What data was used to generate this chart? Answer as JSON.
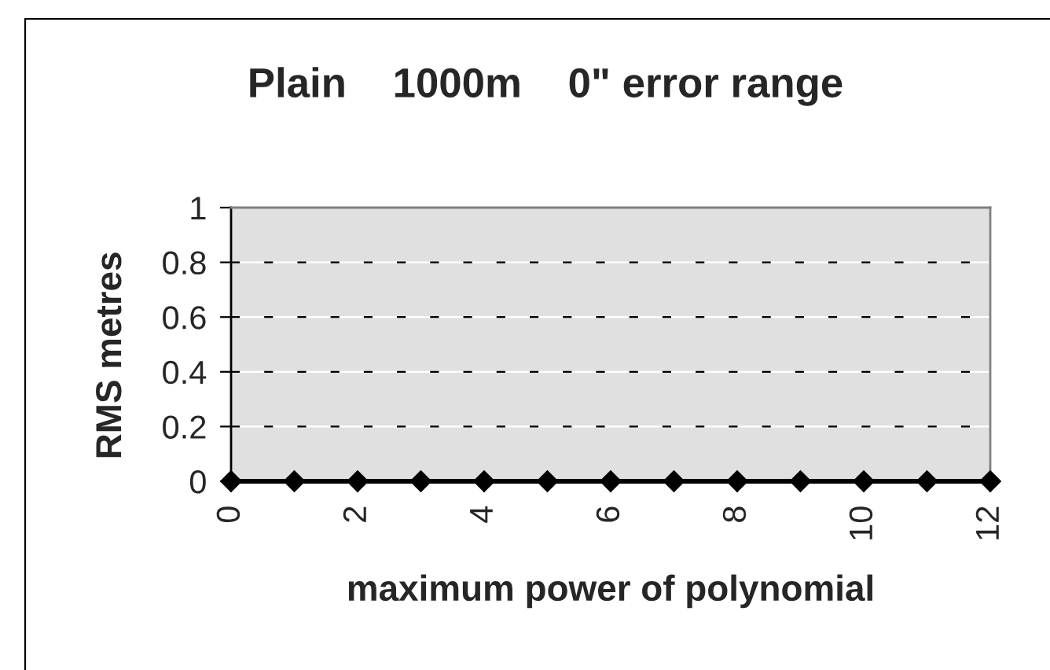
{
  "chart_data": {
    "type": "line",
    "title": "Plain    1000m    0\" error range",
    "xlabel": "maximum power of polynomial",
    "ylabel": "RMS metres",
    "x": [
      0,
      1,
      2,
      3,
      4,
      5,
      6,
      7,
      8,
      9,
      10,
      11,
      12
    ],
    "series": [
      {
        "color": "#000000",
        "values": [
          0,
          0,
          0,
          0,
          0,
          0,
          0,
          0,
          0,
          0,
          0,
          0,
          0
        ]
      }
    ],
    "xlim": [
      0,
      12
    ],
    "xticks": [
      0,
      2,
      4,
      6,
      8,
      10,
      12
    ],
    "ylim": [
      0,
      1
    ],
    "yticks": [
      0,
      0.2,
      0.4,
      0.6,
      0.8,
      1
    ],
    "grid": "y",
    "marker": "diamond",
    "line_style": "solid"
  }
}
